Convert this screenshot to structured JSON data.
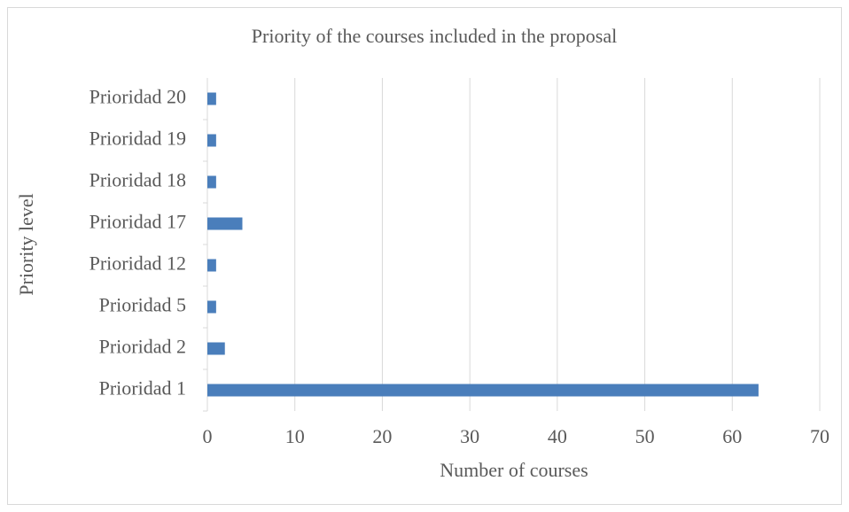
{
  "chart_data": {
    "type": "hbar",
    "title": "Priority of the courses included in the proposal",
    "x_label": "Number of courses",
    "y_label": "Priority level",
    "categories": [
      "Prioridad 1",
      "Prioridad 2",
      "Prioridad 5",
      "Prioridad 12",
      "Prioridad 17",
      "Prioridad 18",
      "Prioridad 19",
      "Prioridad 20"
    ],
    "values": [
      63,
      2,
      1,
      1,
      4,
      1,
      1,
      1
    ],
    "color": "#4a7ebb",
    "xlim": [
      0,
      70
    ],
    "xticks": [
      0,
      10,
      20,
      30,
      40,
      50,
      60,
      70
    ],
    "grid": true
  }
}
